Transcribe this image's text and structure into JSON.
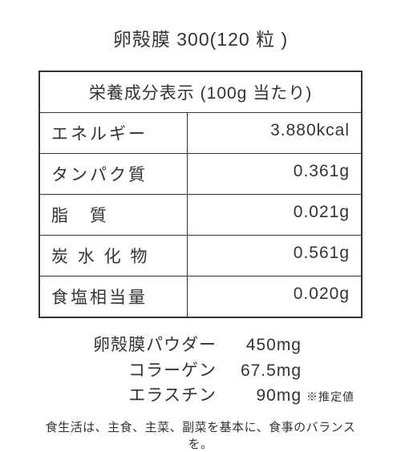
{
  "title": "卵殻膜 300(120 粒 )",
  "table": {
    "header": "栄養成分表示 (100g 当たり)",
    "rows": [
      {
        "label": "エネルギー",
        "value": "3.880kcal"
      },
      {
        "label": "タンパク質",
        "value": "0.361g"
      },
      {
        "label": "脂　質",
        "value": "0.021g"
      },
      {
        "label": "炭 水 化 物",
        "value": "0.561g"
      },
      {
        "label": "食塩相当量",
        "value": "0.020g"
      }
    ]
  },
  "ingredients": [
    {
      "label": "卵殻膜パウダー",
      "value": "450mg",
      "note": ""
    },
    {
      "label": "コラーゲン",
      "value": "67.5mg",
      "note": ""
    },
    {
      "label": "エラスチン",
      "value": "90mg",
      "note": "※推定値"
    }
  ],
  "footer": "食生活は、主食、主菜、副菜を基本に、食事のバランスを。"
}
